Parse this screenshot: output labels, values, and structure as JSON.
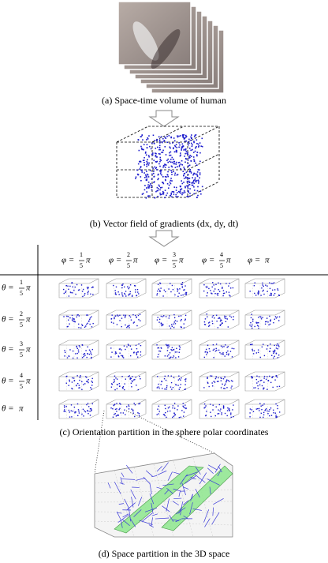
{
  "captions": {
    "a": "(a) Space-time volume of human",
    "b": "(b) Vector field of gradients (dx, dy, dt)",
    "c": "(c) Orientation partition in the sphere polar coordinates",
    "d": "(d) Space partition in the 3D space"
  },
  "columns": [
    {
      "lhs": "φ =",
      "num": "1",
      "den": "5",
      "pi": "π"
    },
    {
      "lhs": "φ =",
      "num": "2",
      "den": "5",
      "pi": "π"
    },
    {
      "lhs": "φ =",
      "num": "3",
      "den": "5",
      "pi": "π"
    },
    {
      "lhs": "φ =",
      "num": "4",
      "den": "5",
      "pi": "π"
    },
    {
      "lhs": "φ =",
      "pi": "π"
    }
  ],
  "rows": [
    {
      "lhs": "θ =",
      "num": "1",
      "den": "5",
      "pi": "π"
    },
    {
      "lhs": "θ =",
      "num": "2",
      "den": "5",
      "pi": "π"
    },
    {
      "lhs": "θ =",
      "num": "3",
      "den": "5",
      "pi": "π"
    },
    {
      "lhs": "θ =",
      "num": "4",
      "den": "5",
      "pi": "π"
    },
    {
      "lhs": "θ =",
      "pi": "π"
    }
  ]
}
